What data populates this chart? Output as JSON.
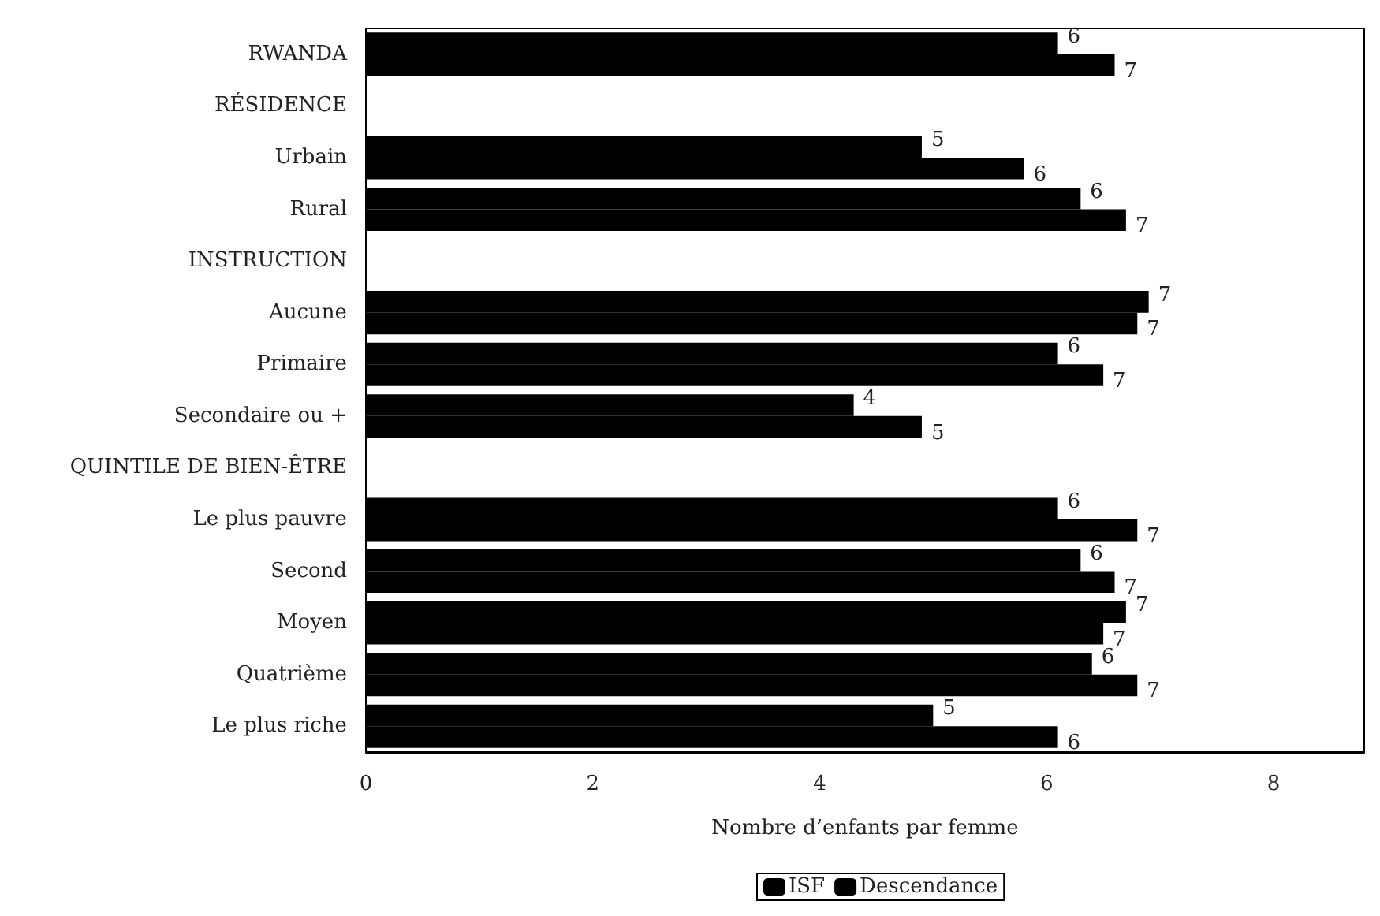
{
  "chart_data": {
    "type": "bar",
    "orientation": "horizontal",
    "xlabel": "Nombre d’enfants par femme",
    "categories": [
      "RWANDA",
      "RÉSIDENCE",
      "Urbain",
      "Rural",
      "INSTRUCTION",
      "Aucune",
      "Primaire",
      "Secondaire ou +",
      "QUINTILE DE BIEN-ÊTRE",
      "Le plus pauvre",
      "Second",
      "Moyen",
      "Quatrième",
      "Le plus riche"
    ],
    "series": [
      {
        "name": "ISF",
        "color": "#000000",
        "values": [
          6.1,
          null,
          4.9,
          6.3,
          null,
          6.9,
          6.1,
          4.3,
          null,
          6.1,
          6.3,
          6.7,
          6.4,
          5.0
        ],
        "value_labels": [
          "6",
          null,
          "5",
          "6",
          null,
          "7",
          "6",
          "4",
          null,
          "6",
          "6",
          "7",
          "6",
          "5"
        ]
      },
      {
        "name": "Descendance",
        "color": "#000000",
        "values": [
          6.6,
          null,
          5.8,
          6.7,
          null,
          6.8,
          6.5,
          4.9,
          null,
          6.8,
          6.6,
          6.5,
          6.8,
          6.1
        ],
        "value_labels": [
          "7",
          null,
          "6",
          "7",
          null,
          "7",
          "7",
          "5",
          null,
          "7",
          "7",
          "7",
          "7",
          "6"
        ]
      }
    ],
    "xlim": [
      0,
      8.8
    ],
    "xticks": [
      0,
      2,
      4,
      6,
      8
    ],
    "grid": false,
    "legend": "bottom"
  }
}
